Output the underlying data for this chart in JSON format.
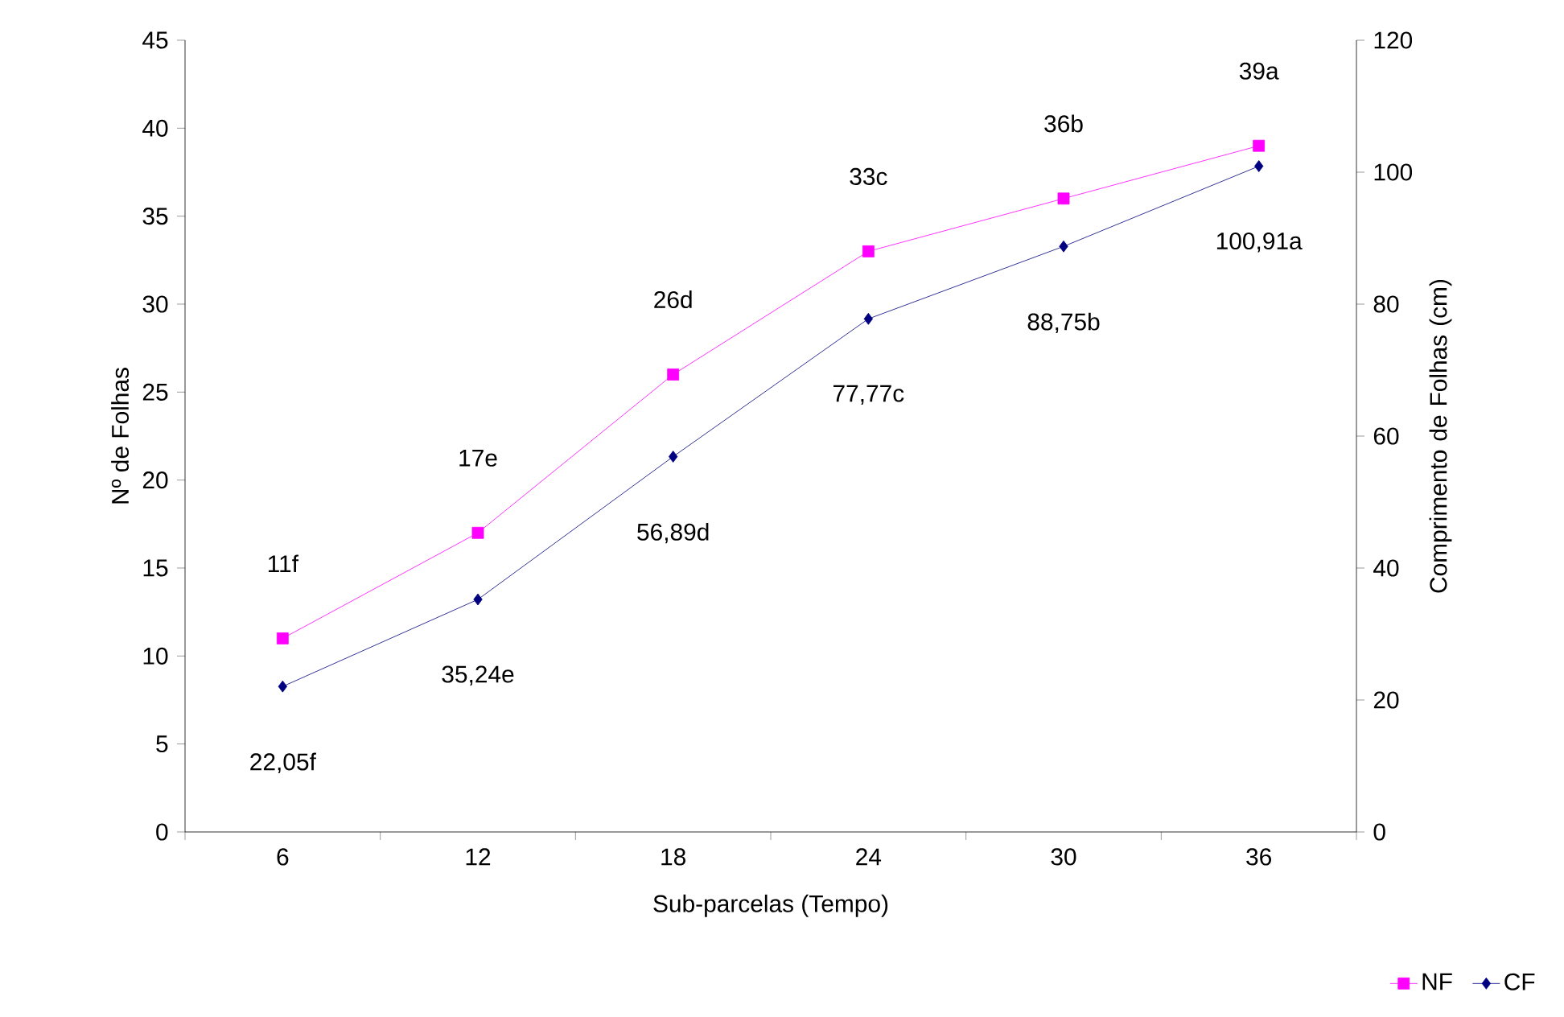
{
  "chart_data": {
    "type": "line",
    "xlabel": "Sub-parcelas (Tempo)",
    "ylabel": "Nº de Folhas",
    "y2label": "Comprimento de Folhas (cm)",
    "categories": [
      "6",
      "12",
      "18",
      "24",
      "30",
      "36"
    ],
    "ylim": [
      0,
      45
    ],
    "yticks": [
      0,
      5,
      10,
      15,
      20,
      25,
      30,
      35,
      40,
      45
    ],
    "y2lim": [
      0,
      120
    ],
    "y2ticks": [
      0,
      20,
      40,
      60,
      80,
      100,
      120
    ],
    "legend": "bottom right",
    "grid": false,
    "series": [
      {
        "name": "NF",
        "color": "#ff00ff",
        "marker": "square",
        "axis": "y",
        "values": [
          11,
          17,
          26,
          33,
          36,
          39
        ],
        "value_labels": [
          "11f",
          "17e",
          "26d",
          "33c",
          "36b",
          "39a"
        ]
      },
      {
        "name": "CF",
        "color": "#000080",
        "marker": "diamond",
        "axis": "y2",
        "values": [
          22.05,
          35.24,
          56.89,
          77.77,
          88.75,
          100.91
        ],
        "value_labels": [
          "22,05f",
          "35,24e",
          "56,89d",
          "77,77c",
          "88,75b",
          "100,91a"
        ]
      }
    ]
  }
}
